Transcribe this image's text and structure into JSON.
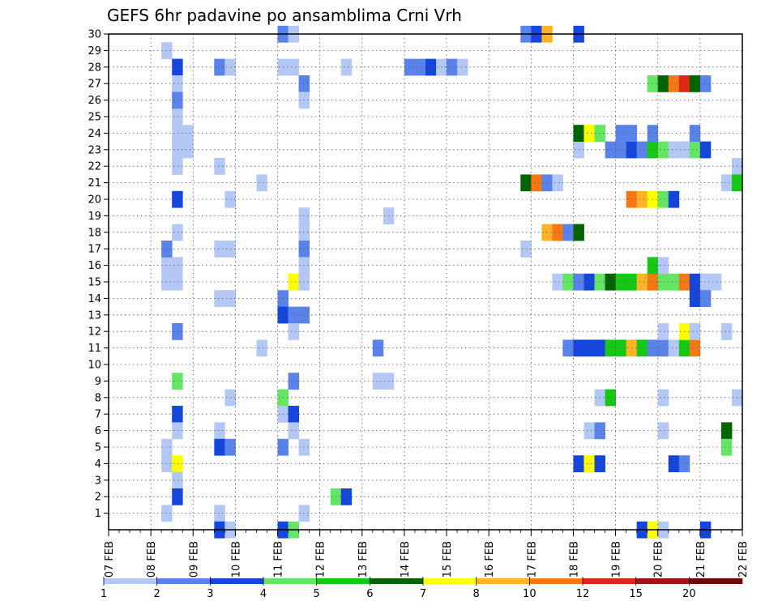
{
  "chart_data": {
    "type": "heatmap",
    "title": "GEFS 6hr padavine po ansamblima Crni Vrh",
    "xlabel": "",
    "ylabel": "",
    "x_tick_labels": [
      "07 FEB",
      "08 FEB",
      "09 FEB",
      "10 FEB",
      "11 FEB",
      "12 FEB",
      "13 FEB",
      "14 FEB",
      "15 FEB",
      "16 FEB",
      "17 FEB",
      "18 FEB",
      "19 FEB",
      "20 FEB",
      "21 FEB",
      "22 FEB"
    ],
    "x_axis_unit": "6-hour step (4 per day), range 0-60",
    "y_tick_labels": [
      "1",
      "2",
      "3",
      "4",
      "5",
      "6",
      "7",
      "8",
      "9",
      "10",
      "11",
      "12",
      "13",
      "14",
      "15",
      "16",
      "17",
      "18",
      "19",
      "20",
      "21",
      "22",
      "23",
      "24",
      "25",
      "26",
      "27",
      "28",
      "29",
      "30"
    ],
    "y_axis_range": [
      0,
      30
    ],
    "grid": "dotted",
    "legend": {
      "placement": "bottom",
      "labels": [
        "1",
        "2",
        "3",
        "4",
        "5",
        "6",
        "7",
        "8",
        "10",
        "12",
        "15",
        "20"
      ],
      "colors": [
        "#b4c8f5",
        "#5a82eb",
        "#1446dc",
        "#64e664",
        "#14c814",
        "#006400",
        "#ffff00",
        "#ffb428",
        "#f57814",
        "#dc2814",
        "#a01414",
        "#6e0a0a"
      ]
    },
    "color_legend_key": "each cell: [time_step, member, level] where level 1..12 indexes legend colors",
    "cells": [
      [
        5,
        29,
        1
      ],
      [
        6,
        25,
        1
      ],
      [
        5,
        16,
        1
      ],
      [
        6,
        16,
        1
      ],
      [
        5,
        15,
        1
      ],
      [
        6,
        15,
        1
      ],
      [
        5,
        5,
        1
      ],
      [
        5,
        4,
        1
      ],
      [
        5,
        1,
        1
      ],
      [
        6,
        28,
        3
      ],
      [
        6,
        27,
        1
      ],
      [
        6,
        26,
        2
      ],
      [
        6,
        24,
        1
      ],
      [
        7,
        24,
        1
      ],
      [
        6,
        23,
        1
      ],
      [
        7,
        23,
        1
      ],
      [
        6,
        22,
        1
      ],
      [
        6,
        20,
        3
      ],
      [
        6,
        18,
        1
      ],
      [
        5,
        17,
        2
      ],
      [
        6,
        12,
        2
      ],
      [
        6,
        9,
        4
      ],
      [
        6,
        7,
        3
      ],
      [
        6,
        6,
        1
      ],
      [
        6,
        4,
        7
      ],
      [
        6,
        3,
        1
      ],
      [
        6,
        2,
        3
      ],
      [
        10,
        28,
        2
      ],
      [
        11,
        28,
        1
      ],
      [
        10,
        22,
        1
      ],
      [
        11,
        20,
        1
      ],
      [
        10,
        17,
        1
      ],
      [
        11,
        17,
        1
      ],
      [
        10,
        14,
        1
      ],
      [
        11,
        14,
        1
      ],
      [
        11,
        8,
        1
      ],
      [
        10,
        6,
        1
      ],
      [
        10,
        5,
        3
      ],
      [
        11,
        5,
        2
      ],
      [
        10,
        1,
        1
      ],
      [
        10,
        0,
        3
      ],
      [
        11,
        0,
        1
      ],
      [
        16,
        30,
        2
      ],
      [
        17,
        30,
        1
      ],
      [
        16,
        28,
        1
      ],
      [
        17,
        28,
        1
      ],
      [
        18,
        27,
        2
      ],
      [
        18,
        26,
        1
      ],
      [
        14,
        21,
        1
      ],
      [
        18,
        19,
        1
      ],
      [
        18,
        18,
        1
      ],
      [
        18,
        17,
        2
      ],
      [
        18,
        16,
        1
      ],
      [
        17,
        15,
        7
      ],
      [
        18,
        15,
        1
      ],
      [
        16,
        14,
        2
      ],
      [
        16,
        13,
        3
      ],
      [
        17,
        13,
        2
      ],
      [
        18,
        13,
        2
      ],
      [
        17,
        12,
        1
      ],
      [
        14,
        11,
        1
      ],
      [
        17,
        9,
        2
      ],
      [
        16,
        8,
        4
      ],
      [
        16,
        7,
        1
      ],
      [
        17,
        7,
        3
      ],
      [
        17,
        6,
        1
      ],
      [
        16,
        5,
        2
      ],
      [
        18,
        5,
        1
      ],
      [
        18,
        1,
        1
      ],
      [
        16,
        0,
        3
      ],
      [
        17,
        0,
        4
      ],
      [
        21,
        2,
        4
      ],
      [
        22,
        2,
        3
      ],
      [
        22,
        28,
        1
      ],
      [
        25,
        9,
        1
      ],
      [
        26,
        9,
        1
      ],
      [
        26,
        19,
        1
      ],
      [
        25,
        11,
        2
      ],
      [
        28,
        28,
        2
      ],
      [
        29,
        28,
        2
      ],
      [
        30,
        28,
        3
      ],
      [
        31,
        28,
        1
      ],
      [
        32,
        28,
        2
      ],
      [
        33,
        28,
        1
      ],
      [
        39,
        30,
        2
      ],
      [
        40,
        30,
        3
      ],
      [
        41,
        30,
        8
      ],
      [
        44,
        30,
        3
      ],
      [
        39,
        21,
        6
      ],
      [
        40,
        21,
        9
      ],
      [
        41,
        21,
        2
      ],
      [
        42,
        21,
        1
      ],
      [
        39,
        17,
        1
      ],
      [
        41,
        18,
        8
      ],
      [
        42,
        18,
        9
      ],
      [
        43,
        18,
        2
      ],
      [
        44,
        18,
        6
      ],
      [
        42,
        15,
        1
      ],
      [
        43,
        15,
        4
      ],
      [
        44,
        15,
        2
      ],
      [
        45,
        15,
        3
      ],
      [
        46,
        15,
        4
      ],
      [
        47,
        15,
        6
      ],
      [
        48,
        15,
        5
      ],
      [
        49,
        15,
        5
      ],
      [
        50,
        15,
        8
      ],
      [
        51,
        15,
        9
      ],
      [
        52,
        15,
        4
      ],
      [
        53,
        15,
        4
      ],
      [
        54,
        15,
        9
      ],
      [
        55,
        15,
        3
      ],
      [
        56,
        15,
        1
      ],
      [
        57,
        15,
        1
      ],
      [
        51,
        16,
        5
      ],
      [
        52,
        16,
        1
      ],
      [
        55,
        14,
        3
      ],
      [
        56,
        14,
        2
      ],
      [
        43,
        11,
        2
      ],
      [
        44,
        11,
        3
      ],
      [
        45,
        11,
        3
      ],
      [
        46,
        11,
        3
      ],
      [
        47,
        11,
        5
      ],
      [
        48,
        11,
        5
      ],
      [
        49,
        11,
        8
      ],
      [
        50,
        11,
        5
      ],
      [
        51,
        11,
        2
      ],
      [
        52,
        11,
        2
      ],
      [
        53,
        11,
        1
      ],
      [
        54,
        11,
        5
      ],
      [
        55,
        11,
        9
      ],
      [
        54,
        12,
        7
      ],
      [
        55,
        12,
        1
      ],
      [
        58,
        12,
        1
      ],
      [
        52,
        12,
        1
      ],
      [
        44,
        23,
        1
      ],
      [
        44,
        24,
        6
      ],
      [
        45,
        24,
        7
      ],
      [
        46,
        24,
        4
      ],
      [
        47,
        23,
        2
      ],
      [
        48,
        23,
        2
      ],
      [
        49,
        23,
        3
      ],
      [
        50,
        23,
        2
      ],
      [
        51,
        23,
        5
      ],
      [
        52,
        23,
        4
      ],
      [
        53,
        23,
        1
      ],
      [
        54,
        23,
        1
      ],
      [
        55,
        23,
        4
      ],
      [
        56,
        23,
        3
      ],
      [
        48,
        24,
        2
      ],
      [
        49,
        24,
        2
      ],
      [
        51,
        24,
        2
      ],
      [
        55,
        24,
        2
      ],
      [
        59,
        22,
        1
      ],
      [
        58,
        21,
        1
      ],
      [
        59,
        21,
        5
      ],
      [
        51,
        27,
        4
      ],
      [
        52,
        27,
        6
      ],
      [
        53,
        27,
        9
      ],
      [
        54,
        27,
        10
      ],
      [
        55,
        27,
        6
      ],
      [
        56,
        27,
        2
      ],
      [
        49,
        20,
        9
      ],
      [
        50,
        20,
        8
      ],
      [
        51,
        20,
        7
      ],
      [
        52,
        20,
        4
      ],
      [
        53,
        20,
        3
      ],
      [
        46,
        8,
        1
      ],
      [
        47,
        8,
        5
      ],
      [
        52,
        8,
        1
      ],
      [
        59,
        8,
        1
      ],
      [
        45,
        6,
        1
      ],
      [
        46,
        6,
        2
      ],
      [
        52,
        6,
        1
      ],
      [
        58,
        6,
        6
      ],
      [
        58,
        5,
        4
      ],
      [
        44,
        4,
        3
      ],
      [
        45,
        4,
        7
      ],
      [
        46,
        4,
        3
      ],
      [
        53,
        4,
        3
      ],
      [
        54,
        4,
        2
      ],
      [
        50,
        0,
        3
      ],
      [
        51,
        0,
        7
      ],
      [
        52,
        0,
        1
      ],
      [
        56,
        0,
        3
      ]
    ]
  }
}
